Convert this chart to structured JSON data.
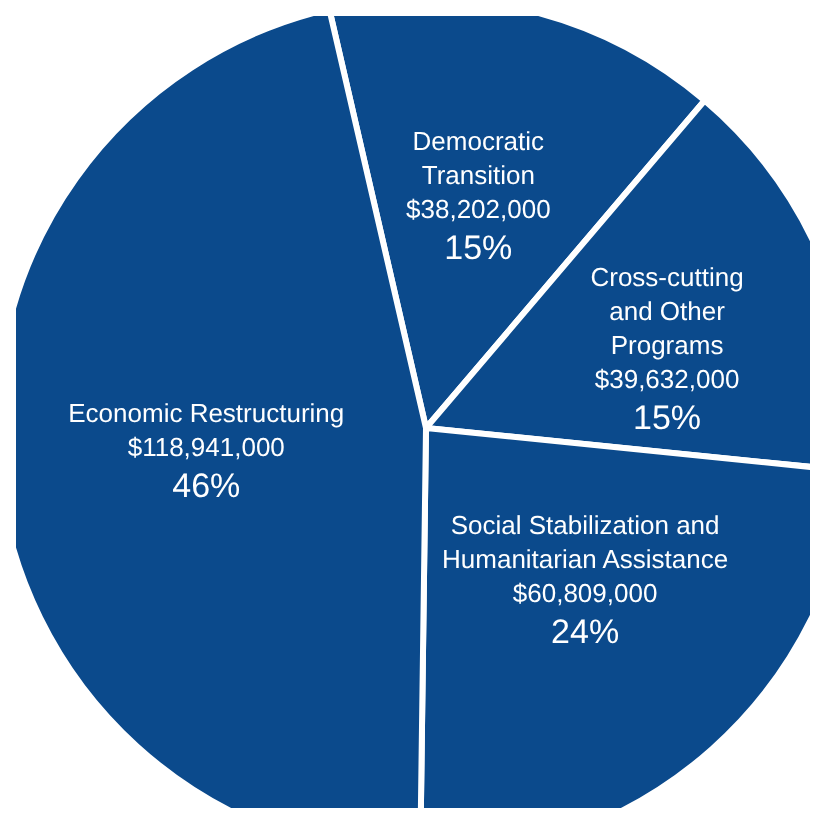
{
  "chart_data": {
    "type": "pie",
    "categories": [
      "Democratic Transition",
      "Cross-cutting and Other Programs",
      "Social Stabilization and Humanitarian Assistance",
      "Economic Restructuring"
    ],
    "values": [
      38202000,
      39632000,
      60809000,
      118941000
    ],
    "colors": [
      "#0b4a8c",
      "#0b4a8c",
      "#0b4a8c",
      "#0b4a8c"
    ],
    "value_labels": [
      "$38,202,000\n15%",
      "$39,632,000\n15%",
      "$60,809,000\n24%",
      "$118,941,000\n46%"
    ],
    "legend": false
  }
}
